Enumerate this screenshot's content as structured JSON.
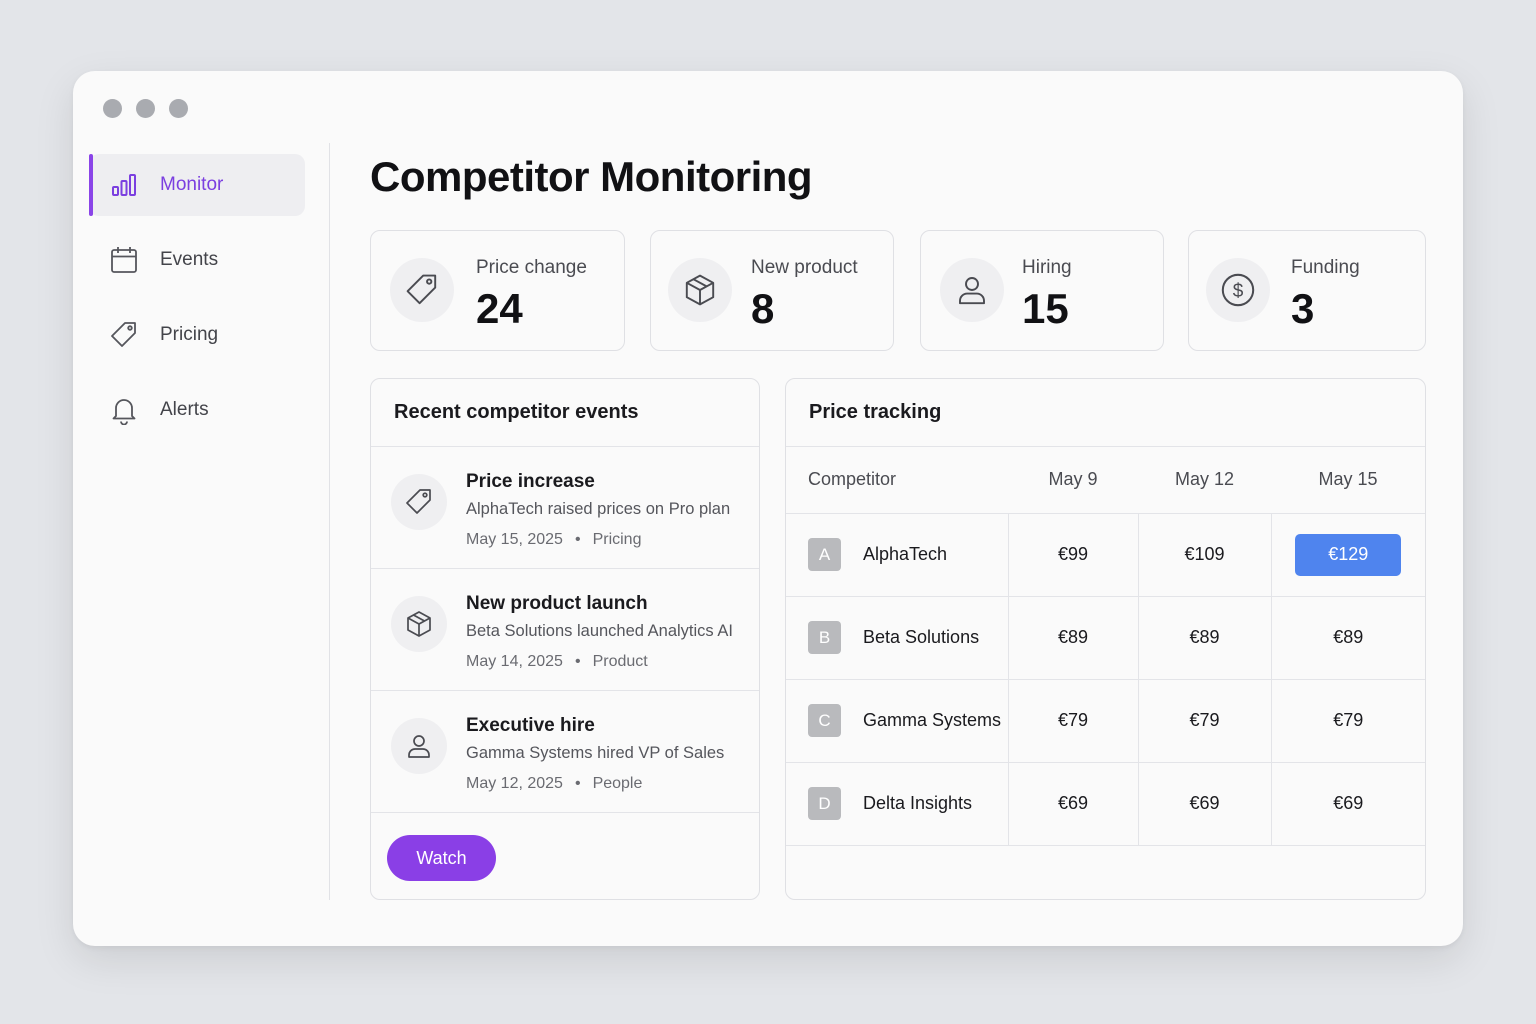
{
  "window": {
    "dots": 3
  },
  "sidebar": {
    "items": [
      {
        "label": "Monitor",
        "icon": "bar-chart-icon",
        "active": true
      },
      {
        "label": "Events",
        "icon": "calendar-icon",
        "active": false
      },
      {
        "label": "Pricing",
        "icon": "tag-icon",
        "active": false
      },
      {
        "label": "Alerts",
        "icon": "bell-icon",
        "active": false
      }
    ]
  },
  "main": {
    "title": "Competitor Monitoring",
    "stats": [
      {
        "label": "Price change",
        "value": "24",
        "icon": "tag-icon"
      },
      {
        "label": "New product",
        "value": "8",
        "icon": "box-icon"
      },
      {
        "label": "Hiring",
        "value": "15",
        "icon": "person-icon"
      },
      {
        "label": "Funding",
        "value": "3",
        "icon": "dollar-icon"
      }
    ],
    "events_panel": {
      "title": "Recent competitor events",
      "events": [
        {
          "title": "Price increase",
          "description": "AlphaTech raised prices on Pro plan",
          "date": "May 15, 2025",
          "category": "Pricing",
          "icon": "tag-icon"
        },
        {
          "title": "New product launch",
          "description": "Beta Solutions launched Analytics AI",
          "date": "May 14, 2025",
          "category": "Product",
          "icon": "box-icon"
        },
        {
          "title": "Executive hire",
          "description": "Gamma Systems hired VP of Sales",
          "date": "May 12, 2025",
          "category": "People",
          "icon": "person-icon"
        }
      ],
      "separator": "•",
      "watch_label": "Watch"
    },
    "price_panel": {
      "title": "Price tracking",
      "columns": [
        "Competitor",
        "May 9",
        "May 12",
        "May 15"
      ],
      "rows": [
        {
          "letter": "A",
          "name": "AlphaTech",
          "prices": [
            "€99",
            "€109",
            "€129"
          ],
          "highlight": 2
        },
        {
          "letter": "B",
          "name": "Beta Solutions",
          "prices": [
            "€89",
            "€89",
            "€89"
          ]
        },
        {
          "letter": "C",
          "name": "Gamma Systems",
          "prices": [
            "€79",
            "€79",
            "€79"
          ]
        },
        {
          "letter": "D",
          "name": "Delta Insights",
          "prices": [
            "€69",
            "€69",
            "€69"
          ]
        }
      ]
    }
  },
  "colors": {
    "accent": "#8a3fe6",
    "highlight": "#4f84ee",
    "background": "#e3e5e9"
  }
}
